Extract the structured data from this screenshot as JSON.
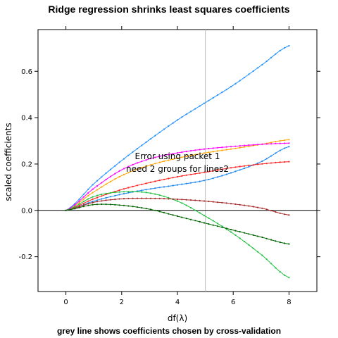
{
  "chart_data": {
    "type": "line",
    "title": "Ridge regression shrinks least squares coefficients",
    "subtitle": "grey line shows coefficients chosen by cross-validation",
    "xlabel": "df(λ)",
    "ylabel": "scaled coefficients",
    "xlim": [
      -1,
      9
    ],
    "ylim": [
      -0.35,
      0.78
    ],
    "x_ticks": [
      0,
      2,
      4,
      6,
      8
    ],
    "y_ticks": [
      -0.2,
      0.0,
      0.2,
      0.4,
      0.6
    ],
    "y_tick_labels": [
      "-0.2",
      "0.0",
      "0.2",
      "0.4",
      "0.6"
    ],
    "reference_lines": {
      "horizontal_y": 0.0,
      "vertical_x_cv": 5.0
    },
    "annotations": [
      "Error using packet 1",
      "need 2 groups for lines2"
    ],
    "grid": false,
    "series": [
      {
        "color": "#1e90ff",
        "x": [
          0,
          1,
          2,
          3,
          4,
          5,
          6,
          7,
          8
        ],
        "values": [
          0,
          0.115,
          0.215,
          0.305,
          0.39,
          0.465,
          0.54,
          0.625,
          0.71
        ]
      },
      {
        "color": "#ffa500",
        "x": [
          0,
          1,
          2,
          3,
          4,
          5,
          6,
          7,
          8
        ],
        "values": [
          0,
          0.08,
          0.15,
          0.195,
          0.225,
          0.248,
          0.266,
          0.285,
          0.305
        ]
      },
      {
        "color": "#ff00ff",
        "x": [
          0,
          1,
          2,
          3,
          4,
          5,
          6,
          7,
          8
        ],
        "values": [
          0,
          0.095,
          0.175,
          0.222,
          0.248,
          0.265,
          0.276,
          0.285,
          0.29
        ]
      },
      {
        "color": "#1c86ee",
        "x": [
          0,
          1,
          2,
          3,
          4,
          5,
          6,
          7,
          8
        ],
        "values": [
          0,
          0.04,
          0.07,
          0.092,
          0.11,
          0.13,
          0.165,
          0.21,
          0.275
        ]
      },
      {
        "color": "#ff2020",
        "x": [
          0,
          1,
          2,
          3,
          4,
          5,
          6,
          7,
          8
        ],
        "values": [
          0,
          0.05,
          0.09,
          0.12,
          0.145,
          0.165,
          0.185,
          0.2,
          0.21
        ]
      },
      {
        "color": "#20c040",
        "x": [
          0,
          1,
          2,
          3,
          4,
          5,
          6,
          7,
          8
        ],
        "values": [
          0,
          0.06,
          0.08,
          0.075,
          0.04,
          -0.025,
          -0.1,
          -0.19,
          -0.29
        ]
      },
      {
        "color": "#a52a2a",
        "x": [
          0,
          1,
          2,
          3,
          4,
          5,
          6,
          7,
          8
        ],
        "values": [
          0,
          0.035,
          0.05,
          0.052,
          0.048,
          0.04,
          0.028,
          0.01,
          -0.02
        ]
      },
      {
        "color": "#006400",
        "x": [
          0,
          1,
          2,
          3,
          4,
          5,
          6,
          7,
          8
        ],
        "values": [
          0,
          0.025,
          0.022,
          0.005,
          -0.025,
          -0.055,
          -0.085,
          -0.115,
          -0.145
        ]
      }
    ]
  }
}
